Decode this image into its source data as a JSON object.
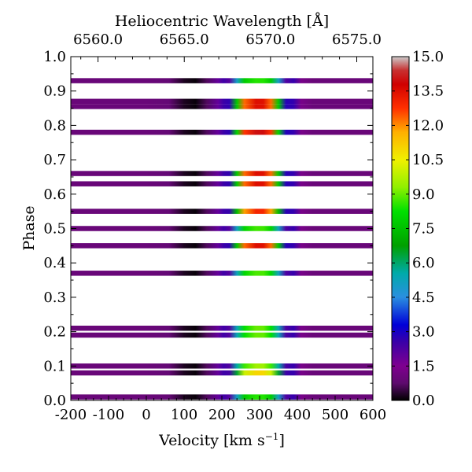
{
  "chart_data": {
    "type": "heatmap",
    "xlabel": "Velocity [km s",
    "xlabel_sup": "−1",
    "xlabel_end": "]",
    "ylabel": "Phase",
    "top_xlabel": "Heliocentric Wavelength [Å]",
    "xlim": [
      -200,
      600
    ],
    "ylim": [
      0.0,
      1.0
    ],
    "x_ticks": [
      "-200",
      "-100",
      "0",
      "100",
      "200",
      "300",
      "400",
      "500",
      "600"
    ],
    "y_ticks": [
      "0.0",
      "0.1",
      "0.2",
      "0.3",
      "0.4",
      "0.5",
      "0.6",
      "0.7",
      "0.8",
      "0.9",
      "1.0"
    ],
    "top_ticks": [
      {
        "value": 6560.0,
        "label": "6560.0"
      },
      {
        "value": 6565.0,
        "label": "6565.0"
      },
      {
        "value": 6570.0,
        "label": "6570.0"
      },
      {
        "value": 6575.0,
        "label": "6575.0"
      }
    ],
    "rest_wavelength": 6562.8,
    "colorbar": {
      "vmin": 0.0,
      "vmax": 15.0,
      "colormap": "spectral",
      "ticks": [
        "0.0",
        "1.5",
        "3.0",
        "4.5",
        "6.0",
        "7.5",
        "9.0",
        "10.5",
        "12.0",
        "13.5",
        "15.0"
      ]
    },
    "velocity_grid": [
      -200,
      -100,
      0,
      60,
      100,
      130,
      160,
      190,
      205,
      220,
      240,
      260,
      290,
      310,
      330,
      350,
      370,
      390,
      410,
      440,
      470,
      500,
      600
    ],
    "spectra": [
      {
        "phase": 0.01,
        "peak": 8.5
      },
      {
        "phase": 0.08,
        "peak": 11.0
      },
      {
        "phase": 0.1,
        "peak": 9.5
      },
      {
        "phase": 0.19,
        "peak": 9.0
      },
      {
        "phase": 0.21,
        "peak": 9.0
      },
      {
        "phase": 0.37,
        "peak": 8.8
      },
      {
        "phase": 0.45,
        "peak": 13.5
      },
      {
        "phase": 0.5,
        "peak": 8.7
      },
      {
        "phase": 0.55,
        "peak": 13.0
      },
      {
        "phase": 0.63,
        "peak": 13.5
      },
      {
        "phase": 0.66,
        "peak": 13.5
      },
      {
        "phase": 0.78,
        "peak": 14.0
      },
      {
        "phase": 0.855,
        "peak": 13.5
      },
      {
        "phase": 0.87,
        "peak": 13.5
      },
      {
        "phase": 0.93,
        "peak": 8.5
      }
    ]
  }
}
